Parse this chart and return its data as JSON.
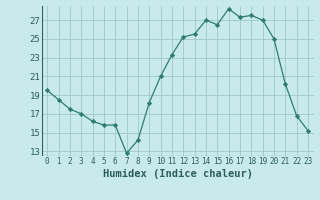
{
  "x": [
    0,
    1,
    2,
    3,
    4,
    5,
    6,
    7,
    8,
    9,
    10,
    11,
    12,
    13,
    14,
    15,
    16,
    17,
    18,
    19,
    20,
    21,
    22,
    23
  ],
  "y": [
    19.5,
    18.5,
    17.5,
    17.0,
    16.2,
    15.8,
    15.8,
    12.8,
    14.2,
    18.2,
    21.0,
    23.3,
    25.2,
    25.5,
    27.0,
    26.5,
    28.2,
    27.3,
    27.5,
    27.0,
    25.0,
    20.2,
    16.8,
    15.2
  ],
  "line_color": "#2e7d6e",
  "marker": "D",
  "marker_size": 2.2,
  "bg_color": "#c8eaea",
  "grid_color": "#a0c8c8",
  "xlabel": "Humidex (Indice chaleur)",
  "ylim": [
    12.5,
    28.5
  ],
  "xlim": [
    -0.5,
    23.5
  ],
  "yticks": [
    13,
    15,
    17,
    19,
    21,
    23,
    25,
    27
  ],
  "xticks": [
    0,
    1,
    2,
    3,
    4,
    5,
    6,
    7,
    8,
    9,
    10,
    11,
    12,
    13,
    14,
    15,
    16,
    17,
    18,
    19,
    20,
    21,
    22,
    23
  ],
  "tick_color": "#2e5d5d",
  "xlabel_fontsize": 7.5,
  "xlabel_fontweight": "bold",
  "ytick_fontsize": 6.5,
  "xtick_fontsize": 5.5
}
